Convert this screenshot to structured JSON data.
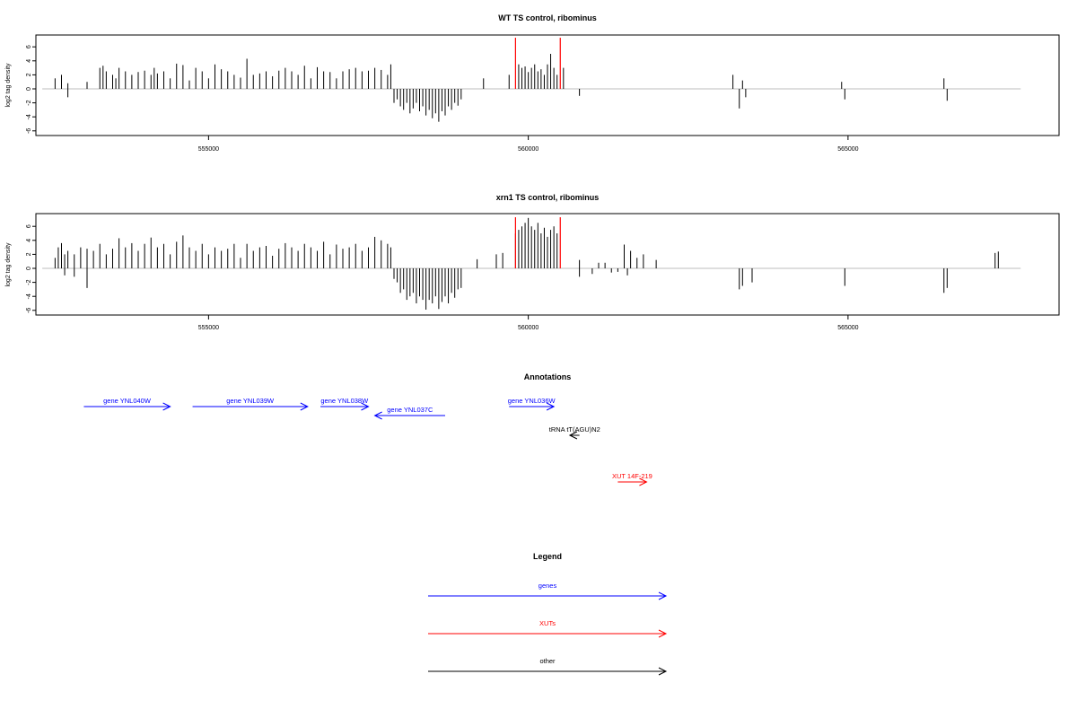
{
  "colors": {
    "genes": "#0000ff",
    "xuts": "#ff0000",
    "other": "#000000",
    "bars": "#000000",
    "marker": "#ff0000",
    "baseline": "#bebebe"
  },
  "chart_data": [
    {
      "type": "bar",
      "title": "WT TS control, ribominus",
      "ylabel": "log2 tag density",
      "xlim": [
        552300,
        568300
      ],
      "ylim": [
        -6,
        8
      ],
      "ytick_labels": [
        "-6",
        "-4",
        "-2",
        "0",
        "2",
        "4",
        "6"
      ],
      "xtick_labels": [
        "555000",
        "560000",
        "565000"
      ],
      "xticks": [
        555000,
        560000,
        565000
      ],
      "grid": false,
      "markers": [
        559800,
        560500
      ],
      "series": [
        {
          "x": [
            552600,
            552700,
            552800,
            553100,
            553300,
            553350,
            553400,
            553500,
            553550,
            553600,
            553700,
            553800,
            553900,
            554000,
            554100,
            554150,
            554200,
            554300,
            554400,
            554500,
            554600,
            554700,
            554800,
            554900,
            555000,
            555100,
            555200,
            555300,
            555400,
            555500,
            555600,
            555700,
            555800,
            555900,
            556000,
            556100,
            556200,
            556300,
            556400,
            556500,
            556600,
            556700,
            556800,
            556900,
            557000,
            557100,
            557200,
            557300,
            557400,
            557500,
            557600,
            557700,
            557800,
            557850,
            559300,
            559700,
            559850,
            559900,
            559950,
            560000,
            560050,
            560100,
            560150,
            560200,
            560250,
            560300,
            560350,
            560400,
            560450,
            560550,
            563200,
            563350,
            564900,
            566500
          ],
          "values": [
            1.5,
            2,
            0.8,
            1,
            3,
            3.3,
            2.5,
            2,
            1.5,
            3,
            2.5,
            2,
            2.4,
            2.6,
            2,
            3,
            2.2,
            2.5,
            1.5,
            3.6,
            3.4,
            1.2,
            3,
            2.5,
            1.5,
            3.5,
            2.8,
            2.5,
            2,
            1.6,
            4.3,
            2,
            2.2,
            2.5,
            1.8,
            2.6,
            3,
            2.5,
            2,
            3.3,
            1.5,
            3.1,
            2.5,
            2.4,
            1.5,
            2.5,
            2.8,
            3,
            2.5,
            2.6,
            3,
            2.7,
            2,
            3.5,
            1.5,
            2,
            3.5,
            3,
            3.2,
            2.4,
            3,
            3.5,
            2.5,
            2.8,
            2,
            3.5,
            5,
            3,
            2,
            3,
            2,
            1.2,
            1,
            1.5
          ]
        },
        {
          "x": [
            552800,
            557900,
            557950,
            558000,
            558050,
            558100,
            558150,
            558200,
            558250,
            558300,
            558350,
            558400,
            558450,
            558500,
            558550,
            558600,
            558650,
            558700,
            558750,
            558800,
            558850,
            558900,
            558950,
            560800,
            563300,
            563400,
            564950,
            566550
          ],
          "values": [
            -1.2,
            -2,
            -1.5,
            -2.5,
            -3,
            -2,
            -3.5,
            -2.8,
            -2,
            -3.2,
            -2.5,
            -3.8,
            -3,
            -4.2,
            -3.5,
            -4.7,
            -3.2,
            -3.8,
            -2.5,
            -3,
            -2,
            -2.4,
            -1.5,
            -1,
            -2.8,
            -1.2,
            -1.5,
            -1.7
          ]
        }
      ]
    },
    {
      "type": "bar",
      "title": "xrn1 TS control, ribominus",
      "ylabel": "log2 tag density",
      "xlim": [
        552300,
        568300
      ],
      "ylim": [
        -6,
        8
      ],
      "ytick_labels": [
        "-6",
        "-4",
        "-2",
        "0",
        "2",
        "4",
        "6"
      ],
      "xtick_labels": [
        "555000",
        "560000",
        "565000"
      ],
      "xticks": [
        555000,
        560000,
        565000
      ],
      "grid": false,
      "markers": [
        559800,
        560500
      ],
      "series": [
        {
          "x": [
            552600,
            552650,
            552700,
            552750,
            552800,
            552900,
            553000,
            553100,
            553200,
            553300,
            553400,
            553500,
            553600,
            553700,
            553800,
            553900,
            554000,
            554100,
            554200,
            554300,
            554400,
            554500,
            554600,
            554700,
            554800,
            554900,
            555000,
            555100,
            555200,
            555300,
            555400,
            555500,
            555600,
            555700,
            555800,
            555900,
            556000,
            556100,
            556200,
            556300,
            556400,
            556500,
            556600,
            556700,
            556800,
            556900,
            557000,
            557100,
            557200,
            557300,
            557400,
            557500,
            557600,
            557700,
            557800,
            557850,
            559200,
            559500,
            559600,
            559800,
            559850,
            559900,
            559950,
            560000,
            560050,
            560100,
            560150,
            560200,
            560250,
            560300,
            560350,
            560400,
            560450,
            560800,
            561100,
            561200,
            561500,
            561600,
            561700,
            561800,
            562000,
            567300,
            567350
          ],
          "values": [
            1.5,
            3,
            3.6,
            2,
            2.5,
            2,
            3,
            2.8,
            2.5,
            3.5,
            2,
            2.8,
            4.3,
            3,
            3.6,
            2.5,
            3.5,
            4.4,
            3,
            3.5,
            2,
            3.8,
            4.7,
            3,
            2.5,
            3.5,
            2,
            3,
            2.5,
            2.8,
            3.5,
            1.5,
            3.5,
            2.5,
            3,
            3.2,
            1.8,
            2.8,
            3.6,
            3,
            2.5,
            3.5,
            3,
            2.5,
            3.8,
            2,
            3.4,
            2.8,
            3,
            3.5,
            2.5,
            3,
            4.5,
            4,
            3.5,
            3,
            1.3,
            2,
            2.2,
            5,
            5.5,
            6,
            6.5,
            7.2,
            6,
            5.5,
            6.5,
            5,
            5.8,
            4.5,
            5.5,
            6,
            5,
            1.2,
            0.8,
            0.8,
            3.4,
            2.5,
            1.5,
            2,
            1.2,
            2.2,
            2.4
          ]
        },
        {
          "x": [
            552750,
            552900,
            553100,
            557900,
            557950,
            558000,
            558050,
            558100,
            558150,
            558200,
            558250,
            558300,
            558350,
            558400,
            558450,
            558500,
            558550,
            558600,
            558650,
            558700,
            558750,
            558800,
            558850,
            558900,
            558950,
            560800,
            561000,
            561300,
            561400,
            561550,
            563300,
            563350,
            563500,
            564950,
            566500,
            566550
          ],
          "values": [
            -1,
            -1.2,
            -2.8,
            -1.5,
            -2,
            -3.5,
            -3,
            -4.5,
            -4,
            -3.5,
            -5,
            -4,
            -4.5,
            -5.9,
            -4.5,
            -5,
            -4,
            -5.8,
            -4.8,
            -4,
            -5,
            -3.5,
            -4.2,
            -3,
            -2.8,
            -1.2,
            -0.8,
            -0.6,
            -0.5,
            -1,
            -3,
            -2.5,
            -2,
            -2.5,
            -3.5,
            -2.8
          ]
        }
      ]
    }
  ],
  "annotations": {
    "title": "Annotations",
    "features": [
      {
        "label": "gene YNL040W",
        "kind": "genes",
        "strand": "+",
        "start": 553050,
        "end": 554400,
        "row": 0
      },
      {
        "label": "gene YNL039W",
        "kind": "genes",
        "strand": "+",
        "start": 554750,
        "end": 556550,
        "row": 0
      },
      {
        "label": "gene YNL038W",
        "kind": "genes",
        "strand": "+",
        "start": 556750,
        "end": 557500,
        "row": 0
      },
      {
        "label": "gene YNL037C",
        "kind": "genes",
        "strand": "-",
        "start": 557600,
        "end": 558700,
        "row": 1
      },
      {
        "label": "gene YNL036W",
        "kind": "genes",
        "strand": "+",
        "start": 559700,
        "end": 560400,
        "row": 0
      },
      {
        "label": "tRNA tT(AGU)N2",
        "kind": "other",
        "strand": "-",
        "start": 560650,
        "end": 560800,
        "row": 2
      },
      {
        "label": "XUT 14F-219",
        "kind": "xuts",
        "strand": "+",
        "start": 561400,
        "end": 561850,
        "row": 3
      }
    ]
  },
  "legend": {
    "title": "Legend",
    "items": [
      {
        "label": "genes",
        "kind": "genes"
      },
      {
        "label": "XUTs",
        "kind": "xuts"
      },
      {
        "label": "other",
        "kind": "other"
      }
    ]
  }
}
